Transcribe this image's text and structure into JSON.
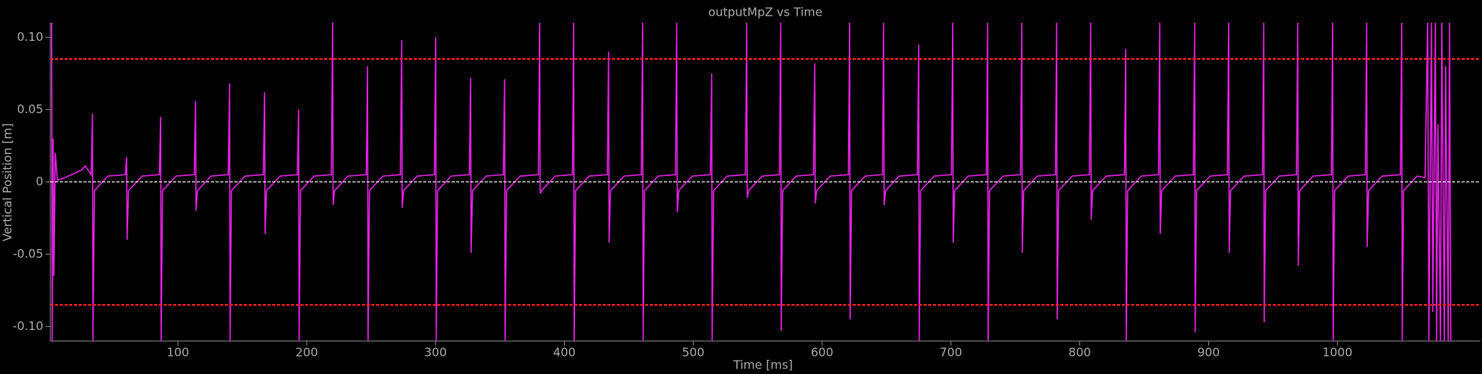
{
  "chart_data": {
    "type": "line",
    "title": "outputMpZ vs Time",
    "xlabel": "Time [ms]",
    "ylabel": "Vertical Position [m]",
    "xlim": [
      1,
      1111
    ],
    "ylim": [
      -0.11,
      0.11
    ],
    "xticks": [
      100,
      200,
      300,
      400,
      500,
      600,
      700,
      800,
      900,
      1000
    ],
    "yticks": [
      {
        "value": -0.1,
        "label": "-0.10"
      },
      -0.05,
      0,
      0.05,
      {
        "value": 0.1,
        "label": "0.10"
      }
    ],
    "hlines": [
      {
        "value": 0.085,
        "color": "#ff2020",
        "style": "dashed"
      },
      {
        "value": -0.085,
        "color": "#ff2020",
        "style": "dashed"
      },
      {
        "value": 0,
        "color": "#ffffff",
        "style": "dashed"
      }
    ],
    "series": [
      {
        "color": "#e020e0",
        "x": [
          2,
          2.5,
          3.2,
          3.8,
          4.8,
          6.5,
          15,
          25,
          28,
          32.7,
          33.7,
          34.1,
          35.2,
          45.7,
          59.2,
          60.2,
          60.6,
          61.7,
          72.2,
          85.6,
          86.6,
          87,
          88.1,
          98.6,
          112.7,
          113.7,
          114.1,
          115.2,
          125.7,
          139.1,
          140.1,
          140.5,
          141.6,
          152.1,
          166.3,
          167.3,
          167.7,
          168.8,
          179.3,
          192.7,
          193.7,
          194.1,
          195.2,
          205.7,
          219.1,
          220.1,
          220.5,
          221.6,
          232.1,
          246.2,
          247.2,
          247.6,
          248.7,
          259.2,
          272.7,
          273.7,
          274.1,
          275.2,
          285.7,
          299.1,
          300.1,
          300.5,
          301.6,
          312.1,
          326.2,
          327.2,
          327.6,
          328.7,
          339.2,
          352.6,
          353.6,
          354,
          355.1,
          365.6,
          379.8,
          380.8,
          381.2,
          382.3,
          392.8,
          406.2,
          407.2,
          407.6,
          408.7,
          419.2,
          433.3,
          434.3,
          434.7,
          435.8,
          446.3,
          459.7,
          460.7,
          461.1,
          462.2,
          472.7,
          486.2,
          487.2,
          487.6,
          488.7,
          499.2,
          513.3,
          514.3,
          514.7,
          515.8,
          526.3,
          540.5,
          541.5,
          541.9,
          543,
          553.5,
          566.9,
          567.9,
          568.3,
          569.4,
          579.9,
          593.3,
          594.3,
          594.7,
          595.8,
          606.3,
          620.4,
          621.4,
          621.8,
          622.9,
          633.4,
          646.8,
          647.8,
          648.2,
          649.3,
          659.8,
          674,
          675,
          675.4,
          676.5,
          687,
          700.4,
          701.4,
          701.8,
          702.9,
          713.4,
          727.5,
          728.5,
          728.9,
          730,
          740.5,
          754,
          755,
          755.4,
          756.5,
          767,
          781.1,
          782.1,
          782.5,
          783.6,
          794.1,
          807.5,
          808.5,
          808.9,
          810,
          820.5,
          834.7,
          835.7,
          836.1,
          837.2,
          847.7,
          861.1,
          862.1,
          862.5,
          863.6,
          874.1,
          888.2,
          889.2,
          889.6,
          890.7,
          901.2,
          914.6,
          915.6,
          916,
          917.1,
          927.6,
          941.8,
          942.8,
          943.2,
          944.3,
          954.8,
          968.2,
          969.2,
          969.6,
          970.7,
          981.2,
          995.3,
          996.3,
          996.7,
          997.8,
          1008.3,
          1021.7,
          1022.7,
          1023.1,
          1024.2,
          1034.7,
          1048.9,
          1049.9,
          1050.3,
          1051.4,
          1061.9,
          1068,
          1070,
          1071,
          1073,
          1074,
          1076,
          1077,
          1078,
          1080,
          1081,
          1083,
          1084,
          1086,
          1087,
          1088
        ],
        "values": [
          0.11,
          -0.11,
          0.03,
          -0.065,
          0.02,
          0.001,
          0.004,
          0.008,
          0.011,
          0.005,
          0.047,
          -0.11,
          -0.006,
          0.004,
          0.005,
          0.017,
          -0.04,
          -0.006,
          0.004,
          0.005,
          0.045,
          -0.11,
          -0.006,
          0.004,
          0.005,
          0.056,
          -0.02,
          -0.006,
          0.004,
          0.005,
          0.068,
          -0.11,
          -0.006,
          0.004,
          0.005,
          0.062,
          -0.036,
          -0.006,
          0.004,
          0.005,
          0.05,
          -0.11,
          -0.006,
          0.004,
          0.005,
          0.11,
          -0.016,
          -0.006,
          0.004,
          0.005,
          0.08,
          -0.11,
          -0.006,
          0.004,
          0.005,
          0.098,
          -0.018,
          -0.006,
          0.004,
          0.005,
          0.1,
          -0.11,
          -0.006,
          0.004,
          0.005,
          0.072,
          -0.049,
          -0.006,
          0.004,
          0.005,
          0.071,
          -0.11,
          -0.006,
          0.004,
          0.005,
          0.11,
          -0.008,
          -0.006,
          0.004,
          0.005,
          0.11,
          -0.11,
          -0.006,
          0.004,
          0.005,
          0.09,
          -0.042,
          -0.006,
          0.004,
          0.005,
          0.11,
          -0.11,
          -0.006,
          0.004,
          0.005,
          0.11,
          -0.021,
          -0.006,
          0.004,
          0.005,
          0.075,
          -0.11,
          -0.006,
          0.004,
          0.005,
          0.11,
          -0.011,
          -0.006,
          0.004,
          0.005,
          0.11,
          -0.103,
          -0.006,
          0.004,
          0.005,
          0.082,
          -0.015,
          -0.006,
          0.004,
          0.005,
          0.11,
          -0.095,
          -0.006,
          0.004,
          0.005,
          0.11,
          -0.016,
          -0.006,
          0.004,
          0.005,
          0.095,
          -0.11,
          -0.006,
          0.004,
          0.005,
          0.11,
          -0.042,
          -0.006,
          0.004,
          0.005,
          0.11,
          -0.11,
          -0.006,
          0.004,
          0.005,
          0.11,
          -0.049,
          -0.006,
          0.004,
          0.005,
          0.11,
          -0.095,
          -0.006,
          0.004,
          0.005,
          0.11,
          -0.026,
          -0.006,
          0.004,
          0.005,
          0.092,
          -0.11,
          -0.006,
          0.004,
          0.005,
          0.11,
          -0.036,
          -0.006,
          0.004,
          0.005,
          0.11,
          -0.104,
          -0.006,
          0.004,
          0.005,
          0.11,
          -0.049,
          -0.006,
          0.004,
          0.005,
          0.11,
          -0.097,
          -0.006,
          0.004,
          0.005,
          0.11,
          -0.058,
          -0.006,
          0.004,
          0.005,
          0.11,
          -0.11,
          -0.006,
          0.004,
          0.005,
          0.11,
          -0.045,
          -0.006,
          0.004,
          0.005,
          0.11,
          -0.11,
          -0.006,
          0.004,
          0.003,
          0.11,
          -0.11,
          0.11,
          -0.09,
          0.11,
          -0.11,
          0.04,
          -0.11,
          0.11,
          -0.11,
          0.08,
          -0.11,
          0.11,
          -0.11
        ]
      }
    ]
  }
}
